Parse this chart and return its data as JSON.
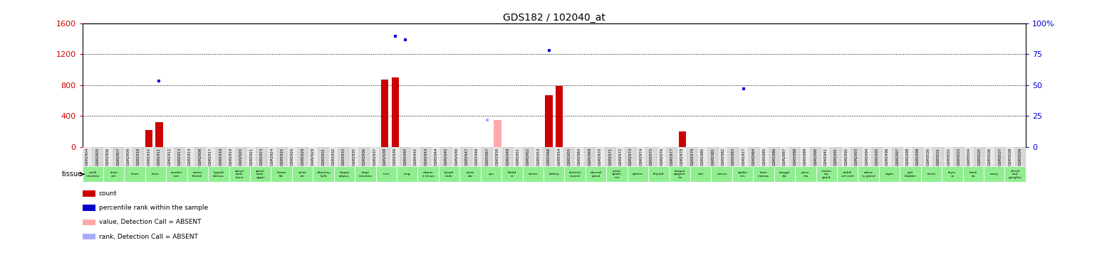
{
  "title": "GDS182 / 102040_at",
  "left_ylim": [
    0,
    1600
  ],
  "right_ylim": [
    0,
    100
  ],
  "left_yticks": [
    0,
    400,
    800,
    1200,
    1600
  ],
  "right_yticks": [
    0,
    25,
    50,
    75,
    100
  ],
  "left_tick_color": "#cc0000",
  "right_tick_color": "#0000cc",
  "tissue_bg_color": "#90EE90",
  "gsm_ids": [
    "GSM2904",
    "GSM2905",
    "GSM2906",
    "GSM2907",
    "GSM2909",
    "GSM2916",
    "GSM2910",
    "GSM2911",
    "GSM2912",
    "GSM2913",
    "GSM2914",
    "GSM2908",
    "GSM2917",
    "GSM2918",
    "GSM2919",
    "GSM2920",
    "GSM2921",
    "GSM2923",
    "GSM2924",
    "GSM2925",
    "GSM2926",
    "GSM2928",
    "GSM2929",
    "GSM2931",
    "GSM2932",
    "GSM2933",
    "GSM2935",
    "GSM2936",
    "GSM2937",
    "GSM2938",
    "GSM2939",
    "GSM2940",
    "GSM2942",
    "GSM2943",
    "GSM2944",
    "GSM2945",
    "GSM2946",
    "GSM2947",
    "GSM2948",
    "GSM2967",
    "GSM2930",
    "GSM2949",
    "GSM2951",
    "GSM2952",
    "GSM2953",
    "GSM2968",
    "GSM2954",
    "GSM2955",
    "GSM2964",
    "GSM2969",
    "GSM2970",
    "GSM2971",
    "GSM2972",
    "GSM2973",
    "GSM2974",
    "GSM2975",
    "GSM2976",
    "GSM2977",
    "GSM2978",
    "GSM2979",
    "GSM2980",
    "GSM2981",
    "GSM2982",
    "GSM2983",
    "GSM2927",
    "GSM2984",
    "GSM2985",
    "GSM2986",
    "GSM2987",
    "GSM2988",
    "GSM2989",
    "GSM2990",
    "GSM2941",
    "GSM2991",
    "GSM2992",
    "GSM2993",
    "GSM2994",
    "GSM2995",
    "GSM2996",
    "GSM2997",
    "GSM2998",
    "GSM2999",
    "GSM3000",
    "GSM3001",
    "GSM3002",
    "GSM3003",
    "GSM3004",
    "GSM3005",
    "GSM3006",
    "GSM3007",
    "GSM3008",
    "GSM3009"
  ],
  "count_values": [
    0,
    0,
    0,
    0,
    0,
    0,
    220,
    320,
    0,
    0,
    0,
    0,
    0,
    0,
    0,
    0,
    0,
    0,
    0,
    0,
    0,
    0,
    0,
    0,
    0,
    0,
    0,
    0,
    0,
    870,
    900,
    0,
    0,
    0,
    0,
    0,
    0,
    0,
    0,
    0,
    0,
    0,
    0,
    0,
    0,
    670,
    790,
    0,
    0,
    0,
    0,
    0,
    0,
    0,
    0,
    0,
    0,
    0,
    200,
    0,
    0,
    0,
    0,
    0,
    0,
    0,
    0,
    0,
    0,
    0,
    0,
    0,
    0,
    0,
    0,
    0,
    0,
    0,
    0,
    0,
    0,
    0,
    0,
    0,
    0,
    0,
    0,
    0,
    0,
    0,
    0,
    0
  ],
  "percentile_values": [
    0,
    0,
    0,
    0,
    0,
    0,
    0,
    850,
    0,
    0,
    0,
    0,
    0,
    0,
    0,
    0,
    0,
    0,
    0,
    0,
    0,
    0,
    0,
    0,
    0,
    0,
    0,
    0,
    0,
    0,
    1430,
    1390,
    0,
    0,
    0,
    0,
    0,
    0,
    0,
    0,
    0,
    0,
    0,
    0,
    0,
    1250,
    0,
    0,
    0,
    0,
    0,
    0,
    0,
    0,
    0,
    0,
    0,
    0,
    0,
    0,
    0,
    0,
    0,
    0,
    750,
    0,
    0,
    0,
    0,
    0,
    0,
    0,
    0,
    0,
    0,
    0,
    0,
    0,
    0,
    0,
    0,
    0,
    0,
    0,
    0,
    0,
    0,
    0,
    0,
    0,
    0,
    0
  ],
  "absent_count_values": [
    0,
    0,
    0,
    0,
    0,
    0,
    0,
    0,
    0,
    0,
    0,
    0,
    0,
    0,
    0,
    0,
    0,
    0,
    0,
    0,
    0,
    0,
    0,
    0,
    0,
    0,
    0,
    0,
    0,
    0,
    0,
    0,
    0,
    0,
    0,
    0,
    0,
    0,
    0,
    0,
    350,
    0,
    0,
    0,
    0,
    0,
    0,
    0,
    0,
    0,
    0,
    0,
    0,
    0,
    0,
    0,
    0,
    0,
    0,
    0,
    0,
    0,
    0,
    0,
    0,
    0,
    0,
    0,
    0,
    0,
    0,
    0,
    0,
    0,
    0,
    0,
    0,
    0,
    0,
    0,
    0,
    0,
    0,
    0,
    0,
    0,
    0,
    0,
    0,
    0,
    0,
    0
  ],
  "absent_percentile_values": [
    0,
    0,
    0,
    0,
    0,
    0,
    0,
    0,
    0,
    0,
    0,
    0,
    0,
    0,
    0,
    0,
    0,
    0,
    0,
    0,
    0,
    0,
    0,
    0,
    0,
    0,
    0,
    0,
    0,
    0,
    0,
    0,
    0,
    0,
    0,
    0,
    0,
    0,
    0,
    350,
    0,
    0,
    0,
    0,
    0,
    0,
    0,
    0,
    0,
    0,
    0,
    0,
    0,
    0,
    0,
    0,
    0,
    0,
    0,
    0,
    0,
    0,
    0,
    0,
    0,
    0,
    0,
    0,
    0,
    0,
    0,
    0,
    0,
    0,
    0,
    0,
    0,
    0,
    0,
    0,
    0,
    0,
    0,
    0,
    0,
    0,
    0,
    0,
    0,
    0,
    0,
    0
  ],
  "tissue_groups": [
    {
      "label": "small\nintestine",
      "n": 1
    },
    {
      "label": "stom\nach",
      "n": 1
    },
    {
      "label": "heart",
      "n": 1
    },
    {
      "label": "bone",
      "n": 1
    },
    {
      "label": "cerebel\nlum",
      "n": 1
    },
    {
      "label": "cortex\nfrontal",
      "n": 1
    },
    {
      "label": "hypoth\nalamus",
      "n": 1
    },
    {
      "label": "spinal\ncord,\nlower",
      "n": 1
    },
    {
      "label": "spinal\ncord,\nupper",
      "n": 1
    },
    {
      "label": "brown\nfat",
      "n": 1
    },
    {
      "label": "striat\num",
      "n": 1
    },
    {
      "label": "olfactory\nbulb",
      "n": 1
    },
    {
      "label": "hippoc\nampus",
      "n": 1
    },
    {
      "label": "large\nintestine",
      "n": 1
    },
    {
      "label": "liver",
      "n": 1
    },
    {
      "label": "lung",
      "n": 1
    },
    {
      "label": "adipos\ne tissue",
      "n": 1
    },
    {
      "label": "lymph\nnode",
      "n": 1
    },
    {
      "label": "prost\nate",
      "n": 1
    },
    {
      "label": "eye",
      "n": 1
    },
    {
      "label": "bladd\ner",
      "n": 1
    },
    {
      "label": "cortex",
      "n": 1
    },
    {
      "label": "kidney",
      "n": 1
    },
    {
      "label": "skeletal\nmuscle",
      "n": 1
    },
    {
      "label": "adrenal\ngland",
      "n": 1
    },
    {
      "label": "snout\nepider\nmis",
      "n": 1
    },
    {
      "label": "spleen",
      "n": 1
    },
    {
      "label": "thyroid",
      "n": 1
    },
    {
      "label": "tongue\nepigem\nnis",
      "n": 1
    },
    {
      "label": "nail",
      "n": 1
    },
    {
      "label": "uterus",
      "n": 1
    },
    {
      "label": "epider\nmis",
      "n": 1
    },
    {
      "label": "bone\nmarrow",
      "n": 1
    },
    {
      "label": "amygd\nala",
      "n": 1
    },
    {
      "label": "place\nnta",
      "n": 1
    },
    {
      "label": "mamm\nary\ngland",
      "n": 1
    },
    {
      "label": "umbili\ncal cord",
      "n": 1
    },
    {
      "label": "saliva\nry gland",
      "n": 1
    },
    {
      "label": "digits",
      "n": 1
    },
    {
      "label": "gall\nbladder",
      "n": 1
    },
    {
      "label": "testis",
      "n": 1
    },
    {
      "label": "thym\nus",
      "n": 1
    },
    {
      "label": "trach\nea",
      "n": 1
    },
    {
      "label": "ovary",
      "n": 1
    },
    {
      "label": "dorsal\nroot\nganglion",
      "n": 1
    }
  ],
  "num_samples": 92,
  "legend_items": [
    {
      "label": "count",
      "color": "#cc0000"
    },
    {
      "label": "percentile rank within the sample",
      "color": "#0000cc"
    },
    {
      "label": "value, Detection Call = ABSENT",
      "color": "#ffaaaa"
    },
    {
      "label": "rank, Detection Call = ABSENT",
      "color": "#aaaaff"
    }
  ]
}
